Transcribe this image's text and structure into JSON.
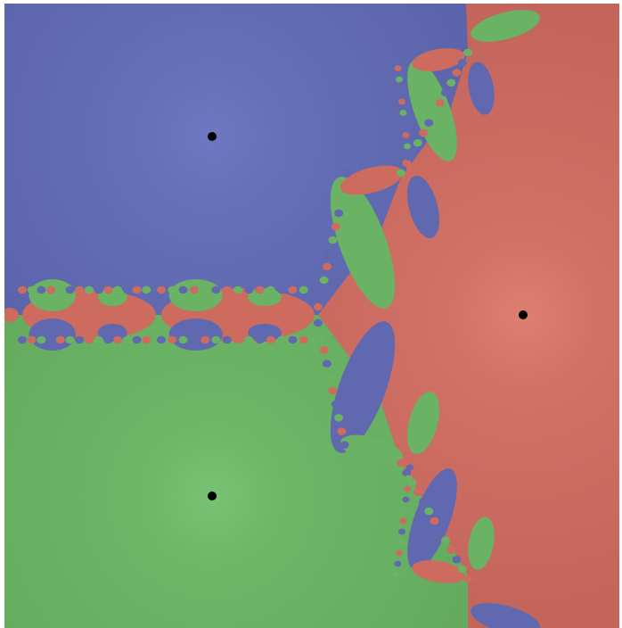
{
  "image": {
    "subject": "fractal",
    "basins": [
      {
        "name": "blue-basin",
        "color": "#6068b0",
        "highlight": "#6973bd"
      },
      {
        "name": "red-basin",
        "color": "#cd6b5f",
        "highlight": "#d97b6d"
      },
      {
        "name": "green-basin",
        "color": "#6ab264",
        "highlight": "#72bd6d"
      }
    ],
    "root_marker_color": "#000000",
    "root_count": 3
  }
}
